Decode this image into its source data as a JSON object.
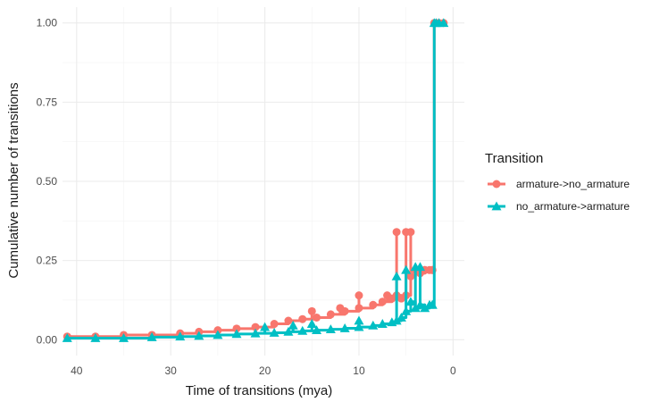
{
  "chart_data": {
    "type": "line",
    "title": "",
    "xlabel": "Time of transitions (mya)",
    "ylabel": "Cumulative number of transitions",
    "x_reversed": true,
    "xlim": [
      41.5,
      -1.2
    ],
    "ylim": [
      -0.05,
      1.05
    ],
    "x_ticks": [
      40,
      30,
      20,
      10,
      0
    ],
    "x_tick_labels": [
      "40",
      "30",
      "20",
      "10",
      "0"
    ],
    "y_ticks": [
      0,
      0.25,
      0.5,
      0.75,
      1
    ],
    "y_tick_labels": [
      "0.00",
      "0.25",
      "0.50",
      "0.75",
      "1.00"
    ],
    "grid": true,
    "legend": {
      "title": "Transition",
      "position": "right"
    },
    "series": [
      {
        "name": "armature->no_armature",
        "color": "#F8766D",
        "marker": "circle",
        "x": [
          41,
          38,
          35,
          32,
          29,
          27,
          25,
          23,
          21,
          19,
          17.5,
          16,
          14.5,
          13,
          11.5,
          10,
          8.5,
          7.5,
          6.5,
          6,
          5.5,
          5,
          4.5,
          4,
          3.5,
          3,
          2.5,
          2.2,
          2,
          1.8,
          1.5,
          1
        ],
        "y": [
          0.01,
          0.01,
          0.015,
          0.015,
          0.02,
          0.025,
          0.03,
          0.035,
          0.04,
          0.05,
          0.06,
          0.065,
          0.07,
          0.08,
          0.09,
          0.1,
          0.11,
          0.12,
          0.13,
          0.14,
          0.13,
          0.14,
          0.2,
          0.22,
          0.21,
          0.22,
          0.22,
          0.22,
          1.0,
          1.0,
          1.0,
          1.0
        ],
        "spikes": [
          {
            "x": 15,
            "y": 0.09
          },
          {
            "x": 12,
            "y": 0.1
          },
          {
            "x": 10,
            "y": 0.14
          },
          {
            "x": 7,
            "y": 0.14
          },
          {
            "x": 6,
            "y": 0.34
          },
          {
            "x": 5,
            "y": 0.34
          },
          {
            "x": 4.5,
            "y": 0.34
          },
          {
            "x": 3,
            "y": 0.22
          },
          {
            "x": 2.2,
            "y": 0.22
          }
        ]
      },
      {
        "name": "no_armature->armature",
        "color": "#00BFC4",
        "marker": "triangle",
        "x": [
          41,
          38,
          35,
          32,
          29,
          27,
          25,
          23,
          21,
          19,
          17.5,
          16,
          14.5,
          13,
          11.5,
          10,
          8.5,
          7.5,
          6.5,
          6,
          5.5,
          5,
          4.5,
          4,
          3.5,
          3,
          2.5,
          2.2,
          2,
          1.8,
          1.5,
          1
        ],
        "y": [
          0.005,
          0.005,
          0.005,
          0.008,
          0.01,
          0.012,
          0.015,
          0.018,
          0.02,
          0.022,
          0.025,
          0.028,
          0.03,
          0.033,
          0.036,
          0.04,
          0.045,
          0.05,
          0.055,
          0.06,
          0.07,
          0.09,
          0.12,
          0.1,
          0.11,
          0.1,
          0.11,
          0.11,
          1.0,
          1.0,
          1.0,
          1.0
        ],
        "spikes": [
          {
            "x": 20,
            "y": 0.04
          },
          {
            "x": 17,
            "y": 0.045
          },
          {
            "x": 15,
            "y": 0.05
          },
          {
            "x": 10,
            "y": 0.06
          },
          {
            "x": 6,
            "y": 0.2
          },
          {
            "x": 5,
            "y": 0.22
          },
          {
            "x": 4,
            "y": 0.23
          },
          {
            "x": 3.5,
            "y": 0.23
          },
          {
            "x": 2.2,
            "y": 0.11
          }
        ]
      }
    ]
  }
}
